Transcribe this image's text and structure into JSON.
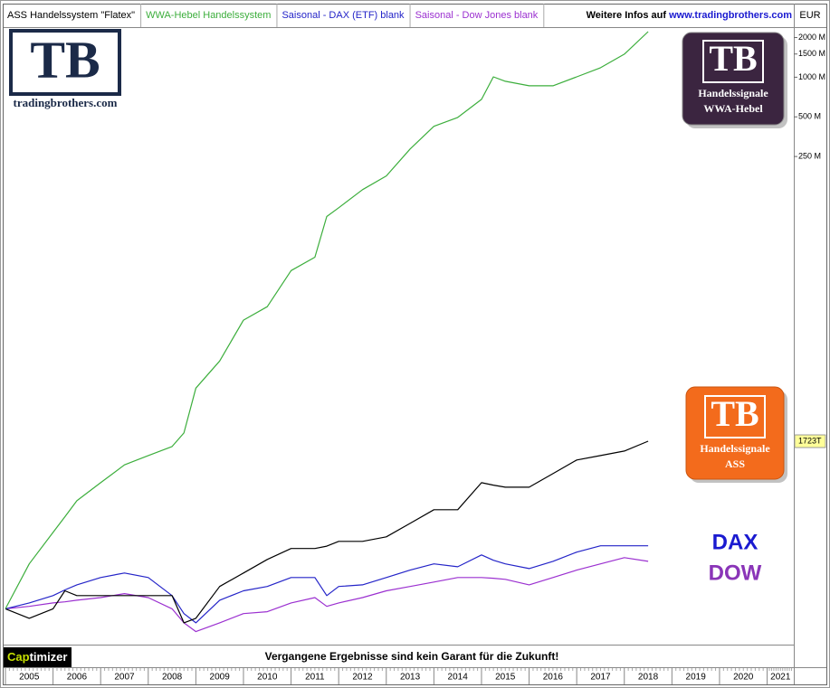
{
  "chart_data": {
    "type": "line",
    "log_scale": true,
    "grid": false,
    "y_unit": "EUR",
    "info_prefix": "Weitere Infos auf",
    "info_link": "www.tradingbrothers.com",
    "x": [
      2005,
      2005.5,
      2006,
      2006.25,
      2006.5,
      2007,
      2007.5,
      2008,
      2008.5,
      2008.75,
      2009,
      2009.5,
      2010,
      2010.5,
      2011,
      2011.5,
      2011.75,
      2012,
      2012.5,
      2013,
      2013.5,
      2014,
      2014.5,
      2015,
      2015.25,
      2015.5,
      2016,
      2016.5,
      2017,
      2017.5,
      2018,
      2018.5
    ],
    "xlim": [
      2005,
      2021.56
    ],
    "xticks": [
      2005,
      2006,
      2007,
      2008,
      2009,
      2010,
      2011,
      2012,
      2013,
      2014,
      2015,
      2016,
      2017,
      2018,
      2019,
      2020,
      2021
    ],
    "ylim": [
      50000,
      2400000000
    ],
    "yticks": [
      {
        "value": 2000000000,
        "label": "2000 M"
      },
      {
        "value": 1500000000,
        "label": "1500 M"
      },
      {
        "value": 1000000000,
        "label": "1000 M"
      },
      {
        "value": 500000000,
        "label": "500 M"
      },
      {
        "value": 250000000,
        "label": "250 M"
      }
    ],
    "current_value": {
      "value": 1723000,
      "label": "1723T"
    },
    "series": [
      {
        "name": "ASS Handelssystem \"Flatex\"",
        "color": "#000000",
        "values": [
          92000,
          78000,
          92000,
          126000,
          116000,
          116000,
          116000,
          116000,
          116000,
          72000,
          78000,
          136000,
          172000,
          218000,
          264000,
          264000,
          275000,
          299000,
          299000,
          324000,
          410000,
          520000,
          520000,
          834000,
          800000,
          771000,
          771000,
          977000,
          1240000,
          1340000,
          1450000,
          1723000
        ]
      },
      {
        "name": "WWA-Hebel Handelssystem",
        "color": "#3cae3c",
        "values": [
          92000,
          202000,
          350000,
          460000,
          608000,
          834000,
          1140000,
          1340000,
          1570000,
          1990000,
          4360000,
          7000000,
          14300000,
          18100000,
          34000000,
          43000000,
          87500000,
          102000000,
          140000000,
          178000000,
          285000000,
          424000000,
          495000000,
          679000000,
          1007000000,
          931000000,
          861000000,
          861000000,
          1007000000,
          1180000000,
          1496000000,
          2218000000
        ]
      },
      {
        "name": "Saisonal - DAX (ETF) blank",
        "color": "#2424c8",
        "values": [
          92000,
          102000,
          116000,
          128000,
          140000,
          159000,
          172000,
          159000,
          116000,
          84700,
          72000,
          107000,
          126000,
          136000,
          159000,
          159000,
          116000,
          136000,
          140000,
          159000,
          181000,
          202000,
          192000,
          236000,
          215000,
          202000,
          186000,
          211000,
          248000,
          277000,
          277000,
          277000
        ]
      },
      {
        "name": "Saisonal - Dow Jones blank",
        "color": "#9b30d0",
        "values": [
          92000,
          96000,
          102000,
          104000,
          107000,
          112000,
          120000,
          112000,
          92000,
          72000,
          61800,
          72000,
          84700,
          87500,
          102000,
          112000,
          96000,
          102000,
          112000,
          126000,
          136000,
          147000,
          159000,
          159000,
          157000,
          154000,
          140000,
          159000,
          181000,
          202000,
          225000,
          211000
        ]
      }
    ]
  },
  "branding": {
    "logo": {
      "mark": "TB",
      "site": "tradingbrothers.com"
    },
    "badge_wwa": {
      "mark": "TB",
      "line1": "Handelssignale",
      "line2": "WWA-Hebel"
    },
    "badge_ass": {
      "mark": "TB",
      "line1": "Handelssignale",
      "line2": "ASS"
    },
    "dax_label": "DAX",
    "dow_label": "DOW",
    "watermark_a": "Cap",
    "watermark_b": "timizer",
    "disclaimer": "Vergangene Ergebnisse sind kein Garant für die Zukunft!"
  }
}
